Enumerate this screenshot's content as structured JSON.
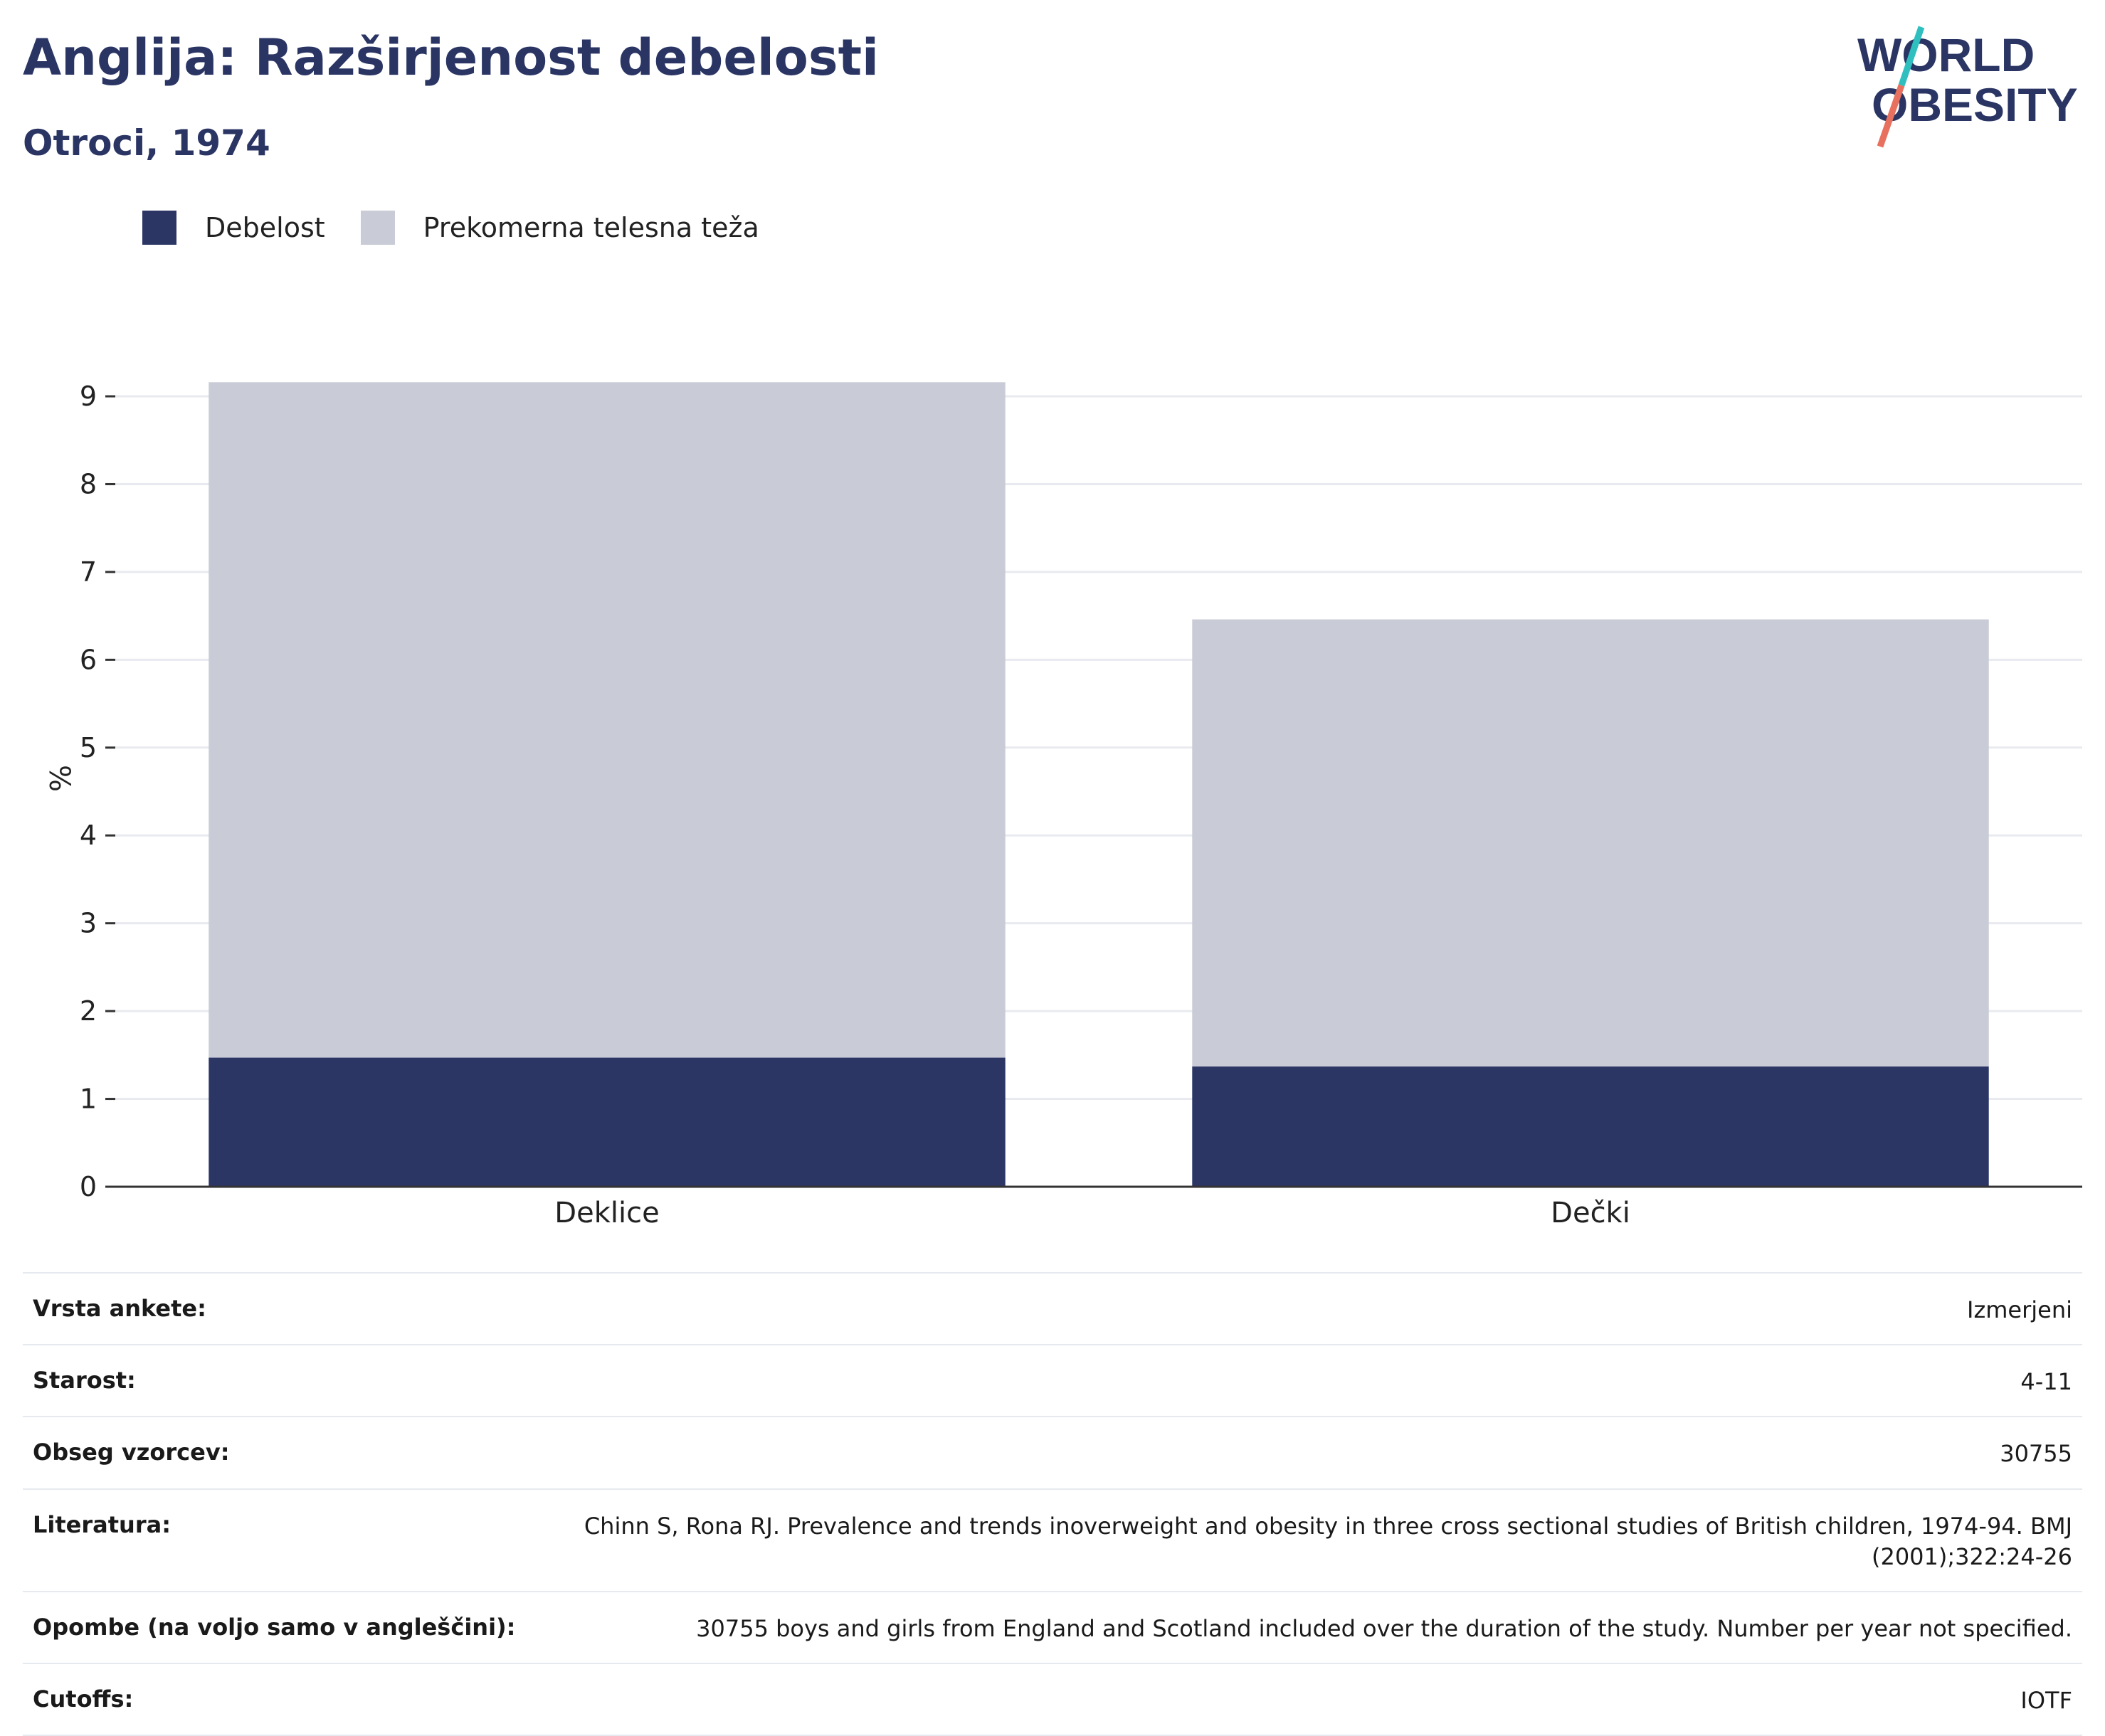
{
  "header": {
    "title": "Anglija: Razširjenost debelosti",
    "subtitle": "Otroci, 1974"
  },
  "logo": {
    "line1": "WORLD",
    "line2": "OBESITY"
  },
  "colors": {
    "obesity": "#2b3665",
    "overweight": "#c9cbd6",
    "title": "#2a3564",
    "logo_teal": "#2fbfbf",
    "logo_coral": "#e8705e"
  },
  "chart_data": {
    "type": "bar",
    "stacked": true,
    "categories": [
      "Deklice",
      "Dečki"
    ],
    "series": [
      {
        "name": "Debelost",
        "values": [
          1.47,
          1.37
        ]
      },
      {
        "name": "Prekomerna telesna teža",
        "values": [
          7.69,
          5.09
        ]
      }
    ],
    "ylabel": "%",
    "ylim": [
      0,
      9.3
    ],
    "yticks": [
      0,
      1,
      2,
      3,
      4,
      5,
      6,
      7,
      8,
      9
    ],
    "grid": true,
    "legend": "top-left"
  },
  "info": [
    {
      "label": "Vrsta ankete:",
      "value": "Izmerjeni"
    },
    {
      "label": "Starost:",
      "value": "4-11"
    },
    {
      "label": "Obseg vzorcev:",
      "value": "30755"
    },
    {
      "label": "Literatura:",
      "value": "Chinn S, Rona RJ. Prevalence and trends inoverweight and obesity in three cross sectional studies of British children, 1974-94. BMJ (2001);322:24-26"
    },
    {
      "label": "Opombe (na voljo samo v angleščini):",
      "value": "30755 boys and girls from England and Scotland included over the duration of the study. Number per year not specified."
    },
    {
      "label": "Cutoffs:",
      "value": "IOTF"
    }
  ]
}
